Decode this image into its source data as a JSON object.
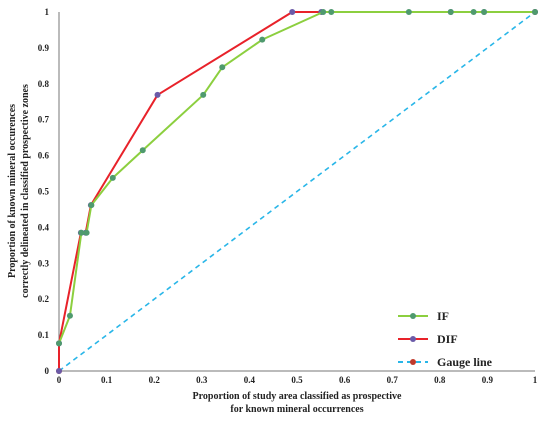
{
  "chart_data": {
    "type": "line",
    "xlabel": [
      "Proportion  of  study  area  classified  as prospective",
      "for known  mineral  occurrences"
    ],
    "ylabel": [
      "Proportion  of  known  mineral  occurences",
      "correctly  delineated  in  classified  prospective  zones"
    ],
    "xlim": [
      0,
      1
    ],
    "ylim": [
      0,
      1
    ],
    "x_ticks": [
      "0",
      "0.1",
      "0.2",
      "0.3",
      "0.4",
      "0.5",
      "0.6",
      "0.7",
      "0.8",
      "0.9",
      "1"
    ],
    "y_ticks": [
      "0",
      "0.1",
      "0.2",
      "0.3",
      "0.4",
      "0.5",
      "0.6",
      "0.7",
      "0.8",
      "0.9",
      "1"
    ],
    "grid": false,
    "legend_position": "bottom-right",
    "series": [
      {
        "name": "IF",
        "color": "#8ccf3f",
        "marker_color": "#4f9a6e",
        "dashed": false,
        "points": [
          [
            0,
            0.077
          ],
          [
            0.023,
            0.154
          ],
          [
            0.047,
            0.385
          ],
          [
            0.058,
            0.385
          ],
          [
            0.068,
            0.462
          ],
          [
            0.113,
            0.538
          ],
          [
            0.176,
            0.615
          ],
          [
            0.303,
            0.769
          ],
          [
            0.343,
            0.846
          ],
          [
            0.427,
            0.923
          ],
          [
            0.555,
            1
          ],
          [
            0.572,
            1
          ],
          [
            0.735,
            1
          ],
          [
            0.823,
            1
          ],
          [
            0.871,
            1
          ],
          [
            0.893,
            1
          ],
          [
            1,
            1
          ]
        ]
      },
      {
        "name": "DIF",
        "color": "#e8222a",
        "marker_color": "#6b5ba8",
        "dashed": false,
        "points": [
          [
            0,
            0
          ],
          [
            0,
            0.077
          ],
          [
            0.046,
            0.385
          ],
          [
            0.056,
            0.385
          ],
          [
            0.067,
            0.462
          ],
          [
            0.207,
            0.769
          ],
          [
            0.49,
            1
          ],
          [
            0.551,
            1
          ],
          [
            0.823,
            1
          ],
          [
            0.893,
            1
          ],
          [
            1,
            1
          ]
        ]
      },
      {
        "name": "Gauge line",
        "color": "#29b6e8",
        "marker_color": "#c0392b",
        "dashed": true,
        "points": [
          [
            0,
            0
          ],
          [
            1,
            1
          ]
        ]
      }
    ]
  }
}
